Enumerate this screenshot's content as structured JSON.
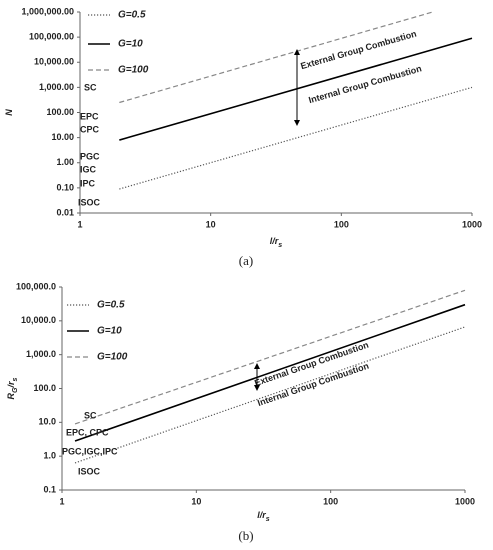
{
  "chart_data": [
    {
      "type": "line",
      "xlabel": "l/r",
      "xlabel_sub": "s",
      "ylabel": "N",
      "panel_label": "(a)",
      "log_x": true,
      "log_y": true,
      "xlim": [
        1,
        1000
      ],
      "xticks": [
        1,
        10,
        100,
        1000
      ],
      "ylim": [
        0.01,
        1000000
      ],
      "yticks": [
        0.01,
        {
          "value": 0.1,
          "label": "0.10"
        },
        {
          "value": 1,
          "label": "1.00"
        },
        {
          "value": 10,
          "label": "10.00"
        },
        {
          "value": 100,
          "label": "100.00"
        },
        {
          "value": 1000,
          "label": "1,000.00"
        },
        {
          "value": 10000,
          "label": "10,000.00"
        },
        {
          "value": 100000,
          "label": "100,000.00"
        },
        {
          "value": 1000000,
          "label": "1,000,000.00"
        }
      ],
      "series": [
        {
          "name": "G=0.5",
          "color": "#555555",
          "style": "dotted",
          "x": [
            2,
            1000
          ],
          "values": [
            0.09,
            1000
          ]
        },
        {
          "name": "G=10",
          "color": "#000000",
          "style": "solid",
          "x": [
            2,
            1000
          ],
          "values": [
            8,
            90000
          ]
        },
        {
          "name": "G=100",
          "color": "#888888",
          "style": "dashed",
          "x": [
            2,
            500
          ],
          "values": [
            250,
            1000000
          ]
        }
      ],
      "annotations": [
        "SC",
        "EPC",
        "CPC",
        "PGC",
        "IGC",
        "IPC",
        "ISOC",
        "External  Group Combustion",
        "Internal Group Combustion"
      ]
    },
    {
      "type": "line",
      "xlabel": "l/r",
      "xlabel_sub": "s",
      "ylabel": "R",
      "ylabel_sub": "G",
      "ylabel_rest": "/r",
      "ylabel_sub2": "s",
      "panel_label": "(b)",
      "log_x": true,
      "log_y": true,
      "xlim": [
        1,
        1000
      ],
      "xticks": [
        1,
        10,
        100,
        1000
      ],
      "ylim": [
        0.1,
        100000
      ],
      "yticks": [
        0.1,
        {
          "value": 1,
          "label": "1.0"
        },
        {
          "value": 10,
          "label": "10.0"
        },
        {
          "value": 100,
          "label": "100.0"
        },
        {
          "value": 1000,
          "label": "1,000.0"
        },
        {
          "value": 10000,
          "label": "10,000.0"
        },
        {
          "value": 100000,
          "label": "100,000.0"
        }
      ],
      "series": [
        {
          "name": "G=0.5",
          "color": "#555555",
          "style": "dotted",
          "x": [
            1.25,
            1000
          ],
          "values": [
            0.63,
            6600
          ]
        },
        {
          "name": "G=10",
          "color": "#000000",
          "style": "solid",
          "x": [
            1.25,
            1000
          ],
          "values": [
            2.8,
            30000
          ]
        },
        {
          "name": "G=100",
          "color": "#888888",
          "style": "dashed",
          "x": [
            1.25,
            1000
          ],
          "values": [
            9,
            80000
          ]
        }
      ],
      "annotations": [
        "SC",
        "EPC, CPC",
        "PGC,IGC,IPC",
        "ISOC",
        "External Group Combustion",
        "Internal Group Combustion"
      ]
    }
  ]
}
